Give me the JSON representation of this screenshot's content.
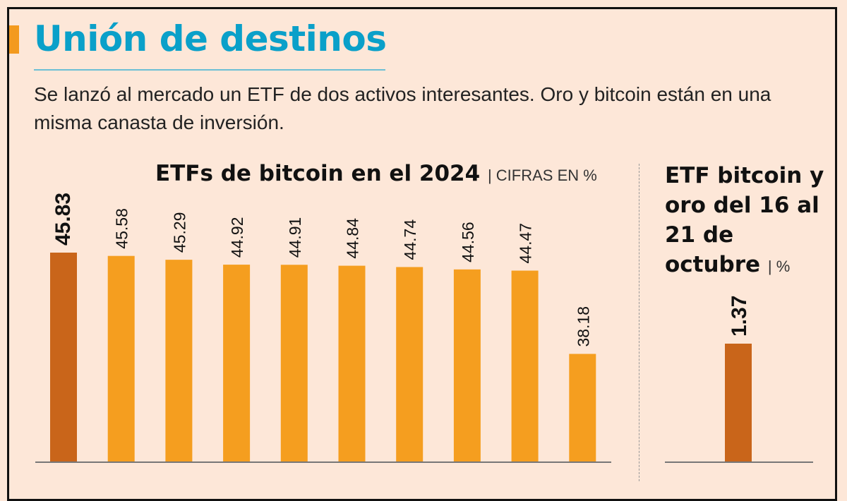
{
  "header": {
    "title": "Unión de destinos",
    "subtitle": "Se lanzó al mercado un ETF de dos activos interesantes. Oro y bitcoin están en una misma canasta de inversión."
  },
  "colors": {
    "highlight": "#c9651a",
    "bar": "#f59e1f",
    "title": "#0aa0c9",
    "background": "#fde7d8"
  },
  "chart_data": [
    {
      "type": "bar",
      "title": "ETFs de bitcoin en el 2024",
      "unit_label": "CIFRAS EN %",
      "values": [
        45.83,
        45.58,
        45.29,
        44.92,
        44.91,
        44.84,
        44.74,
        44.56,
        44.47,
        38.18
      ],
      "highlight_index": 0,
      "ylim": [
        30,
        47
      ],
      "grid": false
    },
    {
      "type": "bar",
      "title": "ETF bitcoin y oro del 16 al 21 de octubre",
      "unit_label": "%",
      "values": [
        1.37
      ],
      "highlight_index": 0,
      "grid": false
    }
  ]
}
